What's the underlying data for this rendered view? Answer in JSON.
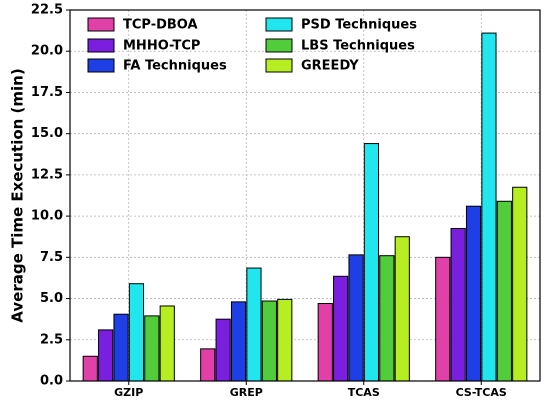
{
  "chart_data": {
    "type": "bar",
    "title": "",
    "xlabel": "",
    "ylabel": "Average Time Execution (min)",
    "categories": [
      "GZIP",
      "GREP",
      "TCAS",
      "CS-TCAS"
    ],
    "ylim": [
      0,
      22.5
    ],
    "yticks": [
      "0.0",
      "2.5",
      "5.0",
      "7.5",
      "10.0",
      "12.5",
      "15.0",
      "17.5",
      "20.0",
      "22.5"
    ],
    "grid": true,
    "legend_position": "top-left",
    "series": [
      {
        "name": "TCP-DBOA",
        "color": "#e040a8",
        "values": [
          1.5,
          1.95,
          4.7,
          7.5
        ]
      },
      {
        "name": "MHHO-TCP",
        "color": "#7a1fe0",
        "values": [
          3.1,
          3.75,
          6.35,
          9.25
        ]
      },
      {
        "name": "FA Techniques",
        "color": "#1f3fe6",
        "values": [
          4.05,
          4.8,
          7.65,
          10.6
        ]
      },
      {
        "name": "PSD Techniques",
        "color": "#22e6ee",
        "values": [
          5.9,
          6.85,
          14.4,
          21.1
        ]
      },
      {
        "name": "LBS Techniques",
        "color": "#52cc3a",
        "values": [
          3.95,
          4.85,
          7.6,
          10.9
        ]
      },
      {
        "name": "GREEDY",
        "color": "#b6ee22",
        "values": [
          4.55,
          4.95,
          8.75,
          11.75
        ]
      }
    ]
  }
}
